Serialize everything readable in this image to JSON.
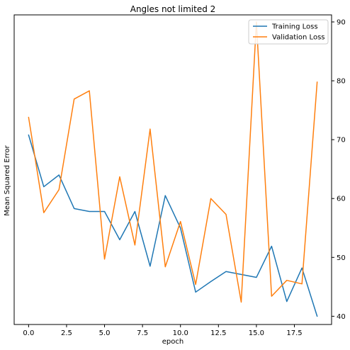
{
  "chart_data": {
    "type": "line",
    "title": "Angles not limited 2",
    "xlabel": "epoch",
    "ylabel": "Mean Squared Error",
    "x": [
      0,
      1,
      2,
      3,
      4,
      5,
      6,
      7,
      8,
      9,
      10,
      11,
      12,
      13,
      14,
      15,
      16,
      17,
      18,
      19
    ],
    "xlim": [
      -0.95,
      19.95
    ],
    "xticks": [
      "0.0",
      "2.5",
      "5.0",
      "7.5",
      "10.0",
      "12.5",
      "15.0",
      "17.5"
    ],
    "xtick_values": [
      0,
      2.5,
      5,
      7.5,
      10,
      12.5,
      15,
      17.5
    ],
    "left_axis_ticks": "none",
    "right_axis": {
      "ylim": [
        38.6,
        91.2
      ],
      "ticks": [
        "40",
        "50",
        "60",
        "70",
        "80",
        "90"
      ],
      "tick_values": [
        40,
        50,
        60,
        70,
        80,
        90
      ]
    },
    "legend_position": "top-right",
    "grid": false,
    "series": [
      {
        "name": "Training Loss",
        "color": "#1f77b4",
        "axis": "right",
        "values": [
          70.8,
          62.0,
          64.0,
          58.3,
          57.8,
          57.8,
          53.0,
          57.8,
          48.5,
          60.5,
          55.0,
          44.1,
          45.9,
          47.6,
          47.1,
          46.6,
          51.9,
          42.5,
          48.2,
          40.0
        ]
      },
      {
        "name": "Validation Loss",
        "color": "#ff7f0e",
        "axis": "right",
        "values": [
          73.8,
          57.6,
          61.5,
          76.9,
          78.3,
          49.7,
          63.7,
          52.1,
          71.8,
          48.4,
          56.1,
          45.4,
          60.0,
          57.3,
          42.4,
          90.0,
          43.4,
          46.1,
          45.5,
          79.8
        ]
      }
    ]
  }
}
